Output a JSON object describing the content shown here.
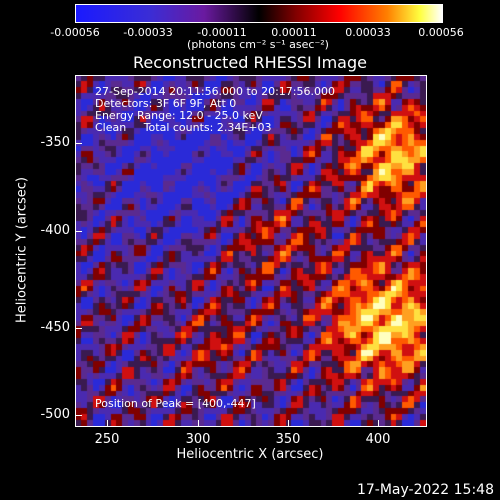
{
  "colorbar": {
    "ticks": [
      "-0.00056",
      "-0.00033",
      "-0.00011",
      "0.00011",
      "0.00033",
      "0.00056"
    ],
    "unit_label": "(photons cm⁻² s⁻¹ asec⁻²)"
  },
  "title": "Reconstructed RHESSI Image",
  "info": {
    "line1": "27-Sep-2014 20:11:56.000 to 20:17:56.000",
    "line2": "Detectors: 3F 6F 9F, Att 0",
    "line3": "Energy Range: 12.0 - 25.0 keV",
    "line4": "Clean     Total counts: 2.34E+03"
  },
  "peak_label": "Position of Peak = [400,-447]",
  "axes": {
    "xlabel": "Heliocentric X (arcsec)",
    "ylabel": "Heliocentric Y (arcsec)",
    "xticks": [
      "250",
      "300",
      "350",
      "400"
    ],
    "yticks": [
      "-350",
      "-400",
      "-450",
      "-500"
    ]
  },
  "timestamp": "17-May-2022 15:48"
}
